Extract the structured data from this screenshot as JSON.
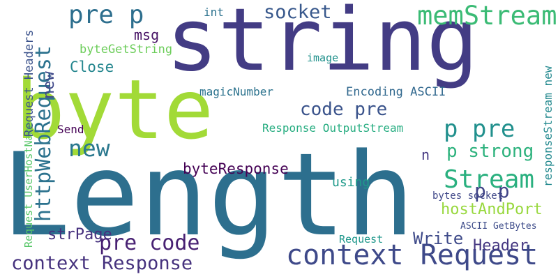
{
  "words": [
    {
      "text": "string",
      "color": "#433c84"
    },
    {
      "text": "Length",
      "color": "#2d6f8e"
    },
    {
      "text": "byte",
      "color": "#a2da37"
    },
    {
      "text": "context Request",
      "color": "#3e4989"
    },
    {
      "text": "context Response",
      "color": "#46327e"
    },
    {
      "text": "httpWebRequest",
      "color": "#2c728e"
    },
    {
      "text": "memStream",
      "color": "#3bbb75"
    },
    {
      "text": "socket",
      "color": "#38588c"
    },
    {
      "text": "pre p",
      "color": "#2e6f8e"
    },
    {
      "text": "Stream",
      "color": "#2ab07f"
    },
    {
      "text": "code pre",
      "color": "#3a538b"
    },
    {
      "text": "pre code",
      "color": "#482173"
    },
    {
      "text": "new",
      "color": "#2a788e"
    },
    {
      "text": "new",
      "color": "#3f4889"
    },
    {
      "text": "p pre",
      "color": "#21908d"
    },
    {
      "text": "p strong",
      "color": "#2db27d"
    },
    {
      "text": "byteResponse",
      "color": "#440154"
    },
    {
      "text": "hostAndPort",
      "color": "#98d83e"
    },
    {
      "text": "strPage",
      "color": "#46307e"
    },
    {
      "text": "Write",
      "color": "#3e4a89"
    },
    {
      "text": "Header",
      "color": "#453781"
    },
    {
      "text": "p p",
      "color": "#414487"
    },
    {
      "text": "Request UserHostName",
      "color": "#56c667"
    },
    {
      "text": "Request Headers",
      "color": "#3b528b"
    },
    {
      "text": "byteGetString",
      "color": "#6ccd5a"
    },
    {
      "text": "Close",
      "color": "#24868e"
    },
    {
      "text": "msg",
      "color": "#471365"
    },
    {
      "text": "Send",
      "color": "#440154"
    },
    {
      "text": "using",
      "color": "#1f9a8a"
    },
    {
      "text": "Encoding ASCII",
      "color": "#31688e"
    },
    {
      "text": "Response OutputStream",
      "color": "#27ad81"
    },
    {
      "text": "responseStream new",
      "color": "#23898e"
    },
    {
      "text": "magicNumber",
      "color": "#2c738e"
    },
    {
      "text": "image",
      "color": "#21918c"
    },
    {
      "text": "Request",
      "color": "#1f978b"
    },
    {
      "text": "int",
      "color": "#2c728e"
    },
    {
      "text": "ASCII GetBytes",
      "color": "#3e4c8a"
    },
    {
      "text": "bytes socket",
      "color": "#3f4788"
    },
    {
      "text": "n",
      "color": "#453882"
    }
  ]
}
